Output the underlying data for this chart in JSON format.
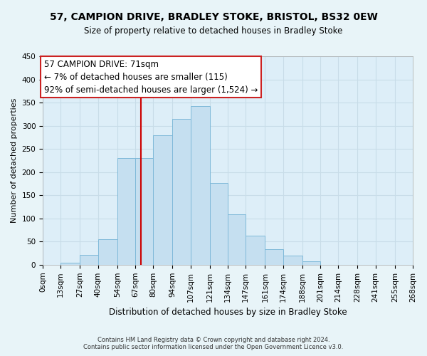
{
  "title": "57, CAMPION DRIVE, BRADLEY STOKE, BRISTOL, BS32 0EW",
  "subtitle": "Size of property relative to detached houses in Bradley Stoke",
  "xlabel": "Distribution of detached houses by size in Bradley Stoke",
  "ylabel": "Number of detached properties",
  "bin_edges": [
    0,
    13,
    27,
    40,
    54,
    67,
    80,
    94,
    107,
    121,
    134,
    147,
    161,
    174,
    188,
    201,
    214,
    228,
    241,
    255,
    268
  ],
  "bin_labels": [
    "0sqm",
    "13sqm",
    "27sqm",
    "40sqm",
    "54sqm",
    "67sqm",
    "80sqm",
    "94sqm",
    "107sqm",
    "121sqm",
    "134sqm",
    "147sqm",
    "161sqm",
    "174sqm",
    "188sqm",
    "201sqm",
    "214sqm",
    "228sqm",
    "241sqm",
    "255sqm",
    "268sqm"
  ],
  "counts": [
    0,
    5,
    22,
    55,
    230,
    230,
    280,
    315,
    342,
    177,
    109,
    63,
    33,
    19,
    7,
    0,
    0,
    0,
    0,
    0
  ],
  "bar_color": "#c5dff0",
  "bar_edge_color": "#7fb9d9",
  "vline_x": 71,
  "vline_color": "#cc0000",
  "annotation_line1": "57 CAMPION DRIVE: 71sqm",
  "annotation_line2": "← 7% of detached houses are smaller (115)",
  "annotation_line3": "92% of semi-detached houses are larger (1,524) →",
  "annotation_box_color": "white",
  "annotation_box_edge": "#cc2222",
  "ylim": [
    0,
    450
  ],
  "yticks": [
    0,
    50,
    100,
    150,
    200,
    250,
    300,
    350,
    400,
    450
  ],
  "footer1": "Contains HM Land Registry data © Crown copyright and database right 2024.",
  "footer2": "Contains public sector information licensed under the Open Government Licence v3.0.",
  "background_color": "#e8f4f8",
  "plot_bg_color": "#ddeef8",
  "grid_color": "#c8dce8",
  "title_fontsize": 10,
  "subtitle_fontsize": 8.5,
  "xlabel_fontsize": 8.5,
  "ylabel_fontsize": 8,
  "tick_fontsize": 7.5,
  "annot_fontsize": 8.5,
  "footer_fontsize": 6.0
}
